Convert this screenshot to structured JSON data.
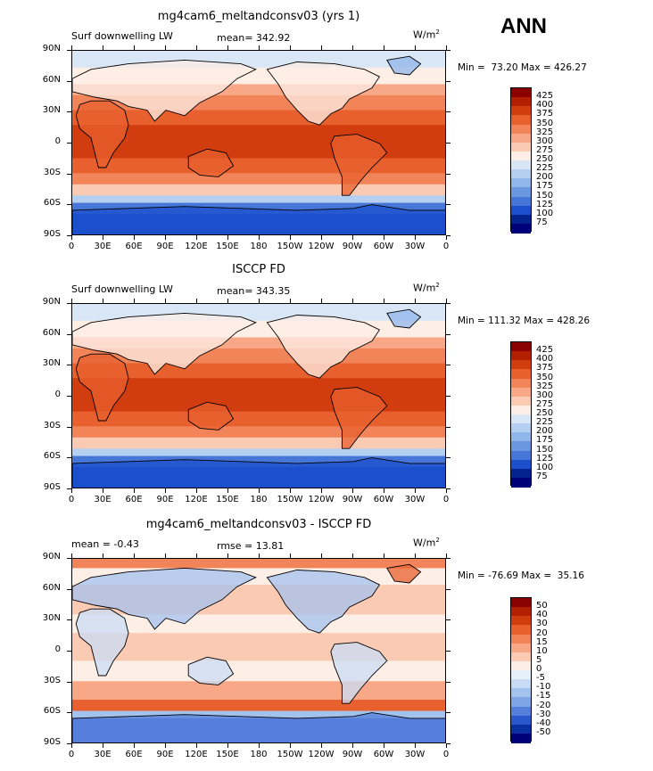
{
  "season": "ANN",
  "panels": [
    {
      "title": "mg4cam6_meltandconsv03 (yrs 1)",
      "left_label": "Surf downwelling LW",
      "center_label": "mean= 342.92",
      "units": "W/m",
      "units_sup": "2",
      "minmax": "Min =  73.20 Max = 426.27",
      "colorbar": [
        "425",
        "400",
        "375",
        "350",
        "325",
        "300",
        "275",
        "250",
        "225",
        "200",
        "175",
        "150",
        "125",
        "100",
        "75"
      ]
    },
    {
      "title": "ISCCP FD",
      "left_label": "Surf downwelling LW",
      "center_label": "mean= 343.35",
      "units": "W/m",
      "units_sup": "2",
      "minmax": "Min = 111.32 Max = 428.26",
      "colorbar": [
        "425",
        "400",
        "375",
        "350",
        "325",
        "300",
        "275",
        "250",
        "225",
        "200",
        "175",
        "150",
        "125",
        "100",
        "75"
      ]
    },
    {
      "title": "mg4cam6_meltandconsv03 - ISCCP FD",
      "left_label": "mean =   -0.43",
      "center_label": "rmse =   13.81",
      "units": "W/m",
      "units_sup": "2",
      "minmax": "Min = -76.69 Max =  35.16",
      "colorbar": [
        "50",
        "40",
        "30",
        "20",
        "15",
        "10",
        "5",
        "0",
        "-5",
        "-10",
        "-15",
        "-20",
        "-30",
        "-40",
        "-50"
      ]
    }
  ],
  "lat_ticks": [
    "90N",
    "60N",
    "30N",
    "0",
    "30S",
    "60S",
    "90S"
  ],
  "lon_ticks": [
    "0",
    "30E",
    "60E",
    "90E",
    "120E",
    "150E",
    "180",
    "150W",
    "120W",
    "90W",
    "60W",
    "30W",
    "0"
  ],
  "colors": {
    "abs_scale": [
      "#8b0000",
      "#b22000",
      "#d23d10",
      "#e8602e",
      "#f2845a",
      "#f8a886",
      "#fbcab2",
      "#fdeee6",
      "#d8e6f6",
      "#b5cff0",
      "#90b6ea",
      "#6a97e0",
      "#4576d8",
      "#1c4fcc",
      "#04238e",
      "#000078"
    ],
    "diff_scale": [
      "#8b0000",
      "#b22000",
      "#d23d10",
      "#e8602e",
      "#f2845a",
      "#f8a886",
      "#fbcab2",
      "#fdeee6",
      "#e6f0fb",
      "#c9dcf5",
      "#a4c2ee",
      "#7ea5e6",
      "#557fda",
      "#2a57cb",
      "#0a2fa0",
      "#000078"
    ]
  }
}
